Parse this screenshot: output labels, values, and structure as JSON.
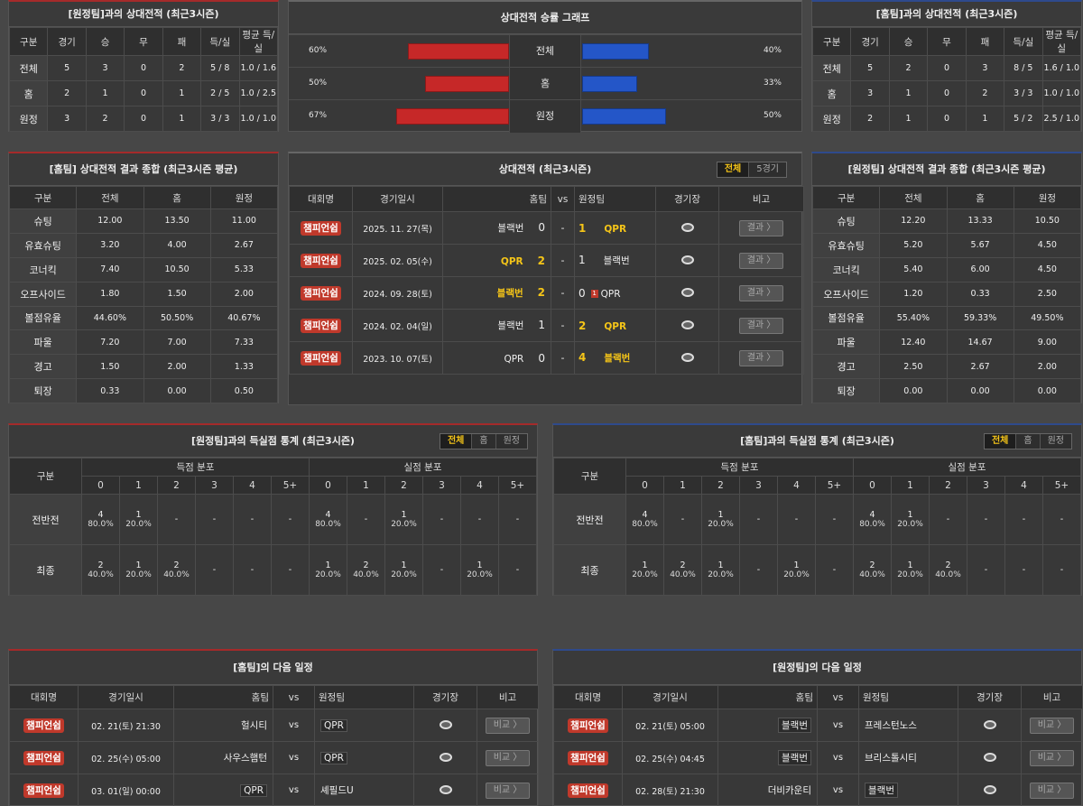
{
  "awayRecord": {
    "title": "[원정팀]과의 상대전적 (최근3시즌)",
    "headers": [
      "구분",
      "경기",
      "승",
      "무",
      "패",
      "득/실",
      "평균 득/실"
    ],
    "rows": [
      [
        "전체",
        "5",
        "3",
        "0",
        "2",
        "5 / 8",
        "1.0 / 1.6"
      ],
      [
        "홈",
        "2",
        "1",
        "0",
        "1",
        "2 / 5",
        "1.0 / 2.5"
      ],
      [
        "원정",
        "3",
        "2",
        "0",
        "1",
        "3 / 3",
        "1.0 / 1.0"
      ]
    ]
  },
  "homeRecord": {
    "title": "[홈팀]과의 상대전적 (최근3시즌)",
    "headers": [
      "구분",
      "경기",
      "승",
      "무",
      "패",
      "득/실",
      "평균 득/실"
    ],
    "rows": [
      [
        "전체",
        "5",
        "2",
        "0",
        "3",
        "8 / 5",
        "1.6 / 1.0"
      ],
      [
        "홈",
        "3",
        "1",
        "0",
        "2",
        "3 / 3",
        "1.0 / 1.0"
      ],
      [
        "원정",
        "2",
        "1",
        "0",
        "1",
        "5 / 2",
        "2.5 / 1.0"
      ]
    ]
  },
  "winGraph": {
    "title": "상대전적 승률 그래프",
    "colors": {
      "home": "#c62828",
      "away": "#2456c8"
    },
    "rows": [
      {
        "label": "전체",
        "left": "60%",
        "right": "40%",
        "leftValue": 60,
        "rightValue": 40
      },
      {
        "label": "홈",
        "left": "50%",
        "right": "33%",
        "leftValue": 50,
        "rightValue": 33
      },
      {
        "label": "원정",
        "left": "67%",
        "right": "50%",
        "leftValue": 67,
        "rightValue": 50
      }
    ]
  },
  "homeSummary": {
    "title": "[홈팀] 상대전적 결과 종합 (최근3시즌 평균)",
    "headers": [
      "구분",
      "전체",
      "홈",
      "원정"
    ],
    "rows": [
      [
        "슈팅",
        "12.00",
        "13.50",
        "11.00"
      ],
      [
        "유효슈팅",
        "3.20",
        "4.00",
        "2.67"
      ],
      [
        "코너킥",
        "7.40",
        "10.50",
        "5.33"
      ],
      [
        "오프사이드",
        "1.80",
        "1.50",
        "2.00"
      ],
      [
        "볼점유율",
        "44.60%",
        "50.50%",
        "40.67%"
      ],
      [
        "파울",
        "7.20",
        "7.00",
        "7.33"
      ],
      [
        "경고",
        "1.50",
        "2.00",
        "1.33"
      ],
      [
        "퇴장",
        "0.33",
        "0.00",
        "0.50"
      ]
    ]
  },
  "awaySummary": {
    "title": "[원정팀] 상대전적 결과 종합 (최근3시즌 평균)",
    "headers": [
      "구분",
      "전체",
      "홈",
      "원정"
    ],
    "rows": [
      [
        "슈팅",
        "12.20",
        "13.33",
        "10.50"
      ],
      [
        "유효슈팅",
        "5.20",
        "5.67",
        "4.50"
      ],
      [
        "코너킥",
        "5.40",
        "6.00",
        "4.50"
      ],
      [
        "오프사이드",
        "1.20",
        "0.33",
        "2.50"
      ],
      [
        "볼점유율",
        "55.40%",
        "59.33%",
        "49.50%"
      ],
      [
        "파울",
        "12.40",
        "14.67",
        "9.00"
      ],
      [
        "경고",
        "2.50",
        "2.67",
        "2.00"
      ],
      [
        "퇴장",
        "0.00",
        "0.00",
        "0.00"
      ]
    ]
  },
  "h2h": {
    "title": "상대전적 (최근3시즌)",
    "tabs": [
      "전체",
      "5경기"
    ],
    "headers": {
      "league": "대회명",
      "date": "경기일시",
      "home": "홈팀",
      "vs": "vs",
      "away": "원정팀",
      "venue": "경기장",
      "note": "비고"
    },
    "rows": [
      {
        "league": "챔피언쉽",
        "date": "2025. 11. 27(목)",
        "home": "블랙번",
        "hs": "0",
        "as": "1",
        "away": "QPR",
        "winner": "away",
        "card": ""
      },
      {
        "league": "챔피언쉽",
        "date": "2025. 02. 05(수)",
        "home": "QPR",
        "hs": "2",
        "as": "1",
        "away": "블랙번",
        "winner": "home",
        "card": ""
      },
      {
        "league": "챔피언쉽",
        "date": "2024. 09. 28(토)",
        "home": "블랙번",
        "hs": "2",
        "as": "0",
        "away": "QPR",
        "winner": "home",
        "card": "1"
      },
      {
        "league": "챔피언쉽",
        "date": "2024. 02. 04(일)",
        "home": "블랙번",
        "hs": "1",
        "as": "2",
        "away": "QPR",
        "winner": "away",
        "card": ""
      },
      {
        "league": "챔피언쉽",
        "date": "2023. 10. 07(토)",
        "home": "QPR",
        "hs": "0",
        "as": "4",
        "away": "블랙번",
        "winner": "away",
        "card": ""
      }
    ],
    "resultLabel": "결과 〉"
  },
  "scoreStatsLeft": {
    "title": "[원정팀]과의 득실점 통계 (최근3시즌)",
    "tabs": [
      "전체",
      "홈",
      "원정"
    ],
    "label": "구분",
    "groupFor": "득점 분포",
    "groupAgainst": "실점 분포",
    "cols": [
      "0",
      "1",
      "2",
      "3",
      "4",
      "5+"
    ],
    "rows": [
      {
        "label": "전반전",
        "cells": [
          [
            "4",
            "80.0%"
          ],
          [
            "1",
            "20.0%"
          ],
          [
            "-",
            ""
          ],
          [
            "-",
            ""
          ],
          [
            "-",
            ""
          ],
          [
            "-",
            ""
          ],
          [
            "4",
            "80.0%"
          ],
          [
            "-",
            ""
          ],
          [
            "1",
            "20.0%"
          ],
          [
            "-",
            ""
          ],
          [
            "-",
            ""
          ],
          [
            "-",
            ""
          ]
        ]
      },
      {
        "label": "최종",
        "cells": [
          [
            "2",
            "40.0%"
          ],
          [
            "1",
            "20.0%"
          ],
          [
            "2",
            "40.0%"
          ],
          [
            "-",
            ""
          ],
          [
            "-",
            ""
          ],
          [
            "-",
            ""
          ],
          [
            "1",
            "20.0%"
          ],
          [
            "2",
            "40.0%"
          ],
          [
            "1",
            "20.0%"
          ],
          [
            "-",
            ""
          ],
          [
            "1",
            "20.0%"
          ],
          [
            "-",
            ""
          ]
        ]
      }
    ]
  },
  "scoreStatsRight": {
    "title": "[홈팀]과의 득실점 통계 (최근3시즌)",
    "tabs": [
      "전체",
      "홈",
      "원정"
    ],
    "label": "구분",
    "groupFor": "득점 분포",
    "groupAgainst": "실점 분포",
    "cols": [
      "0",
      "1",
      "2",
      "3",
      "4",
      "5+"
    ],
    "rows": [
      {
        "label": "전반전",
        "cells": [
          [
            "4",
            "80.0%"
          ],
          [
            "-",
            ""
          ],
          [
            "1",
            "20.0%"
          ],
          [
            "-",
            ""
          ],
          [
            "-",
            ""
          ],
          [
            "-",
            ""
          ],
          [
            "4",
            "80.0%"
          ],
          [
            "1",
            "20.0%"
          ],
          [
            "-",
            ""
          ],
          [
            "-",
            ""
          ],
          [
            "-",
            ""
          ],
          [
            "-",
            ""
          ]
        ]
      },
      {
        "label": "최종",
        "cells": [
          [
            "1",
            "20.0%"
          ],
          [
            "2",
            "40.0%"
          ],
          [
            "1",
            "20.0%"
          ],
          [
            "-",
            ""
          ],
          [
            "1",
            "20.0%"
          ],
          [
            "-",
            ""
          ],
          [
            "2",
            "40.0%"
          ],
          [
            "1",
            "20.0%"
          ],
          [
            "2",
            "40.0%"
          ],
          [
            "-",
            ""
          ],
          [
            "-",
            ""
          ],
          [
            "-",
            ""
          ]
        ]
      }
    ]
  },
  "homeNext": {
    "title": "[홈팀]의 다음 일정",
    "headers": {
      "league": "대회명",
      "date": "경기일시",
      "home": "홈팀",
      "vs": "vs",
      "away": "원정팀",
      "venue": "경기장",
      "note": "비고"
    },
    "rows": [
      {
        "league": "챔피언쉽",
        "date": "02. 21(토) 21:30",
        "home": "헐시티",
        "away": "QPR",
        "boxed": "away"
      },
      {
        "league": "챔피언쉽",
        "date": "02. 25(수) 05:00",
        "home": "사우스햄턴",
        "away": "QPR",
        "boxed": "away"
      },
      {
        "league": "챔피언쉽",
        "date": "03. 01(일) 00:00",
        "home": "QPR",
        "away": "셰필드U",
        "boxed": "home"
      }
    ],
    "compareLabel": "비교 〉"
  },
  "awayNext": {
    "title": "[원정팀]의 다음 일정",
    "headers": {
      "league": "대회명",
      "date": "경기일시",
      "home": "홈팀",
      "vs": "vs",
      "away": "원정팀",
      "venue": "경기장",
      "note": "비고"
    },
    "rows": [
      {
        "league": "챔피언쉽",
        "date": "02. 21(토) 05:00",
        "home": "블랙번",
        "away": "프레스턴노스",
        "boxed": "home"
      },
      {
        "league": "챔피언쉽",
        "date": "02. 25(수) 04:45",
        "home": "블랙번",
        "away": "브리스톨시티",
        "boxed": "home"
      },
      {
        "league": "챔피언쉽",
        "date": "02. 28(토) 21:30",
        "home": "더비카운티",
        "away": "블랙번",
        "boxed": "away"
      }
    ],
    "compareLabel": "비교 〉"
  }
}
